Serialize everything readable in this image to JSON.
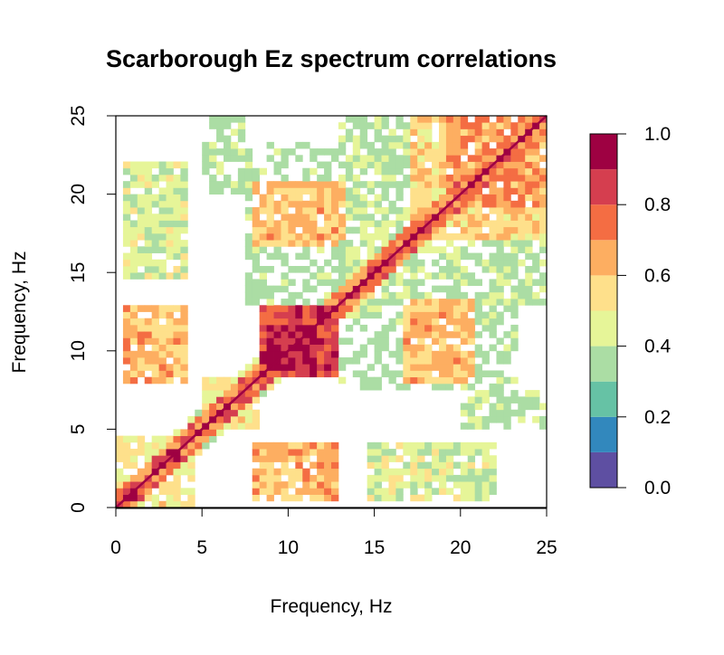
{
  "chart_data": {
    "type": "heatmap",
    "title": "Scarborough Ez spectrum correlations",
    "xlabel": "Frequency, Hz",
    "ylabel": "Frequency, Hz",
    "xlim": [
      0,
      25
    ],
    "ylim": [
      0,
      25
    ],
    "x_ticks": [
      0,
      5,
      10,
      15,
      20,
      25
    ],
    "y_ticks": [
      0,
      5,
      10,
      15,
      20,
      25
    ],
    "x_tick_labels": [
      "0",
      "5",
      "10",
      "15",
      "20",
      "25"
    ],
    "y_tick_labels": [
      "0",
      "5",
      "10",
      "15",
      "20",
      "25"
    ],
    "colorbar": {
      "range": [
        0,
        1
      ],
      "tick_values": [
        0.0,
        0.2,
        0.4,
        0.6,
        0.8,
        1.0
      ],
      "tick_labels": [
        "0.0",
        "0.2",
        "0.4",
        "0.6",
        "0.8",
        "1.0"
      ],
      "bins": [
        {
          "from": 0.0,
          "to": 0.1,
          "color": "#5e4fa2"
        },
        {
          "from": 0.1,
          "to": 0.2,
          "color": "#3288bd"
        },
        {
          "from": 0.2,
          "to": 0.3,
          "color": "#66c2a5"
        },
        {
          "from": 0.3,
          "to": 0.4,
          "color": "#abdda4"
        },
        {
          "from": 0.4,
          "to": 0.5,
          "color": "#e6f598"
        },
        {
          "from": 0.5,
          "to": 0.6,
          "color": "#fee08b"
        },
        {
          "from": 0.6,
          "to": 0.7,
          "color": "#fdae61"
        },
        {
          "from": 0.7,
          "to": 0.8,
          "color": "#f46d43"
        },
        {
          "from": 0.8,
          "to": 0.9,
          "color": "#d53e4f"
        },
        {
          "from": 0.9,
          "to": 1.0,
          "color": "#9e0142"
        }
      ]
    },
    "symmetric": true,
    "diagonal_value": 1.0,
    "blocks": [
      {
        "x": [
          8.3,
          13.0
        ],
        "y": [
          8.3,
          13.0
        ],
        "value": 0.82
      },
      {
        "x": [
          8.9,
          11.6
        ],
        "y": [
          8.9,
          11.6
        ],
        "value": 0.95
      },
      {
        "x": [
          17.0,
          25.0
        ],
        "y": [
          17.0,
          25.0
        ],
        "value": 0.55
      },
      {
        "x": [
          19.0,
          25.0
        ],
        "y": [
          19.0,
          25.0
        ],
        "value": 0.65
      },
      {
        "x": [
          0.0,
          4.5
        ],
        "y": [
          0.0,
          4.5
        ],
        "value": 0.5
      },
      {
        "x": [
          0.3,
          1.6
        ],
        "y": [
          0.3,
          1.6
        ],
        "value": 0.8
      },
      {
        "x": [
          2.8,
          3.6
        ],
        "y": [
          2.8,
          3.6
        ],
        "value": 0.9
      },
      {
        "x": [
          5.0,
          8.3
        ],
        "y": [
          5.0,
          8.3
        ],
        "value": 0.5
      },
      {
        "x": [
          0.5,
          4.3
        ],
        "y": [
          8.0,
          13.0
        ],
        "value": 0.62
      },
      {
        "x": [
          0.5,
          4.3
        ],
        "y": [
          15.5,
          21.0
        ],
        "value": 0.35
      },
      {
        "x": [
          8.2,
          12.8
        ],
        "y": [
          0.5,
          4.2
        ],
        "value": 0.62
      },
      {
        "x": [
          8.0,
          13.0
        ],
        "y": [
          16.5,
          20.8
        ],
        "value": 0.6
      },
      {
        "x": [
          17.0,
          20.8
        ],
        "y": [
          8.0,
          13.2
        ],
        "value": 0.6
      },
      {
        "x": [
          14.5,
          22.0
        ],
        "y": [
          0.5,
          4.0
        ],
        "value": 0.42
      },
      {
        "x": [
          5.5,
          7.0
        ],
        "y": [
          20.0,
          25.0
        ],
        "value": 0.35
      },
      {
        "x": [
          20.0,
          25.0
        ],
        "y": [
          5.0,
          7.5
        ],
        "value": 0.32
      },
      {
        "x": [
          13.0,
          25.0
        ],
        "y": [
          13.0,
          17.0
        ],
        "value": 0.35
      },
      {
        "x": [
          7.5,
          13.5
        ],
        "y": [
          13.0,
          23.5
        ],
        "value": 0.3
      }
    ]
  }
}
